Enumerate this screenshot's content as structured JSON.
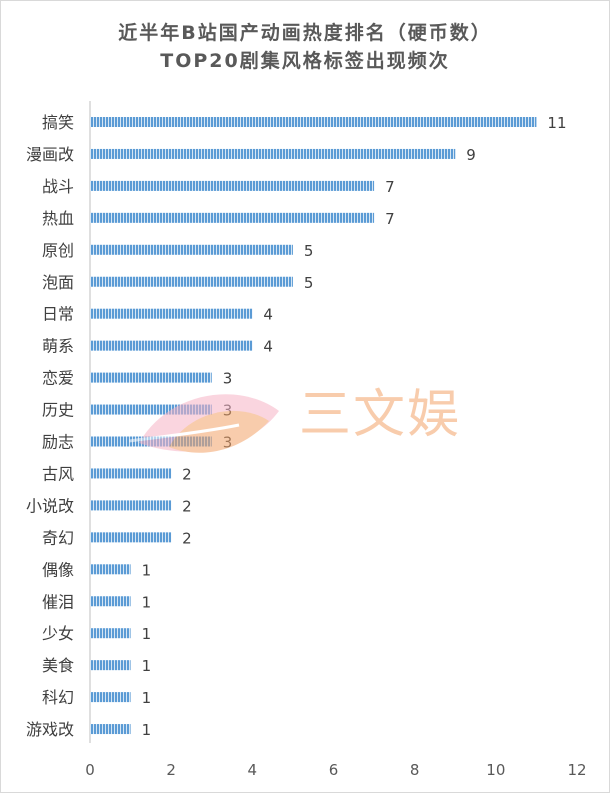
{
  "chart_data": {
    "type": "bar",
    "orientation": "horizontal",
    "title": "近半年B站国产动画热度排名（硬币数）",
    "subtitle": "TOP20剧集风格标签出现频次",
    "categories": [
      "搞笑",
      "漫画改",
      "战斗",
      "热血",
      "原创",
      "泡面",
      "日常",
      "萌系",
      "恋爱",
      "历史",
      "励志",
      "古风",
      "小说改",
      "奇幻",
      "偶像",
      "催泪",
      "少女",
      "美食",
      "科幻",
      "游戏改"
    ],
    "values": [
      11,
      9,
      7,
      7,
      5,
      5,
      4,
      4,
      3,
      3,
      3,
      2,
      2,
      2,
      1,
      1,
      1,
      1,
      1,
      1
    ],
    "xlim": [
      0,
      12
    ],
    "xticks": [
      0,
      2,
      4,
      6,
      8,
      10,
      12
    ],
    "xlabel": "",
    "ylabel": "",
    "grid": false,
    "legend": "none",
    "data_labels": true,
    "bar_color": "#5b9bd5"
  },
  "watermark": {
    "text": "三文娱",
    "colors": [
      "#f4a46a",
      "#f7b3c6"
    ]
  }
}
